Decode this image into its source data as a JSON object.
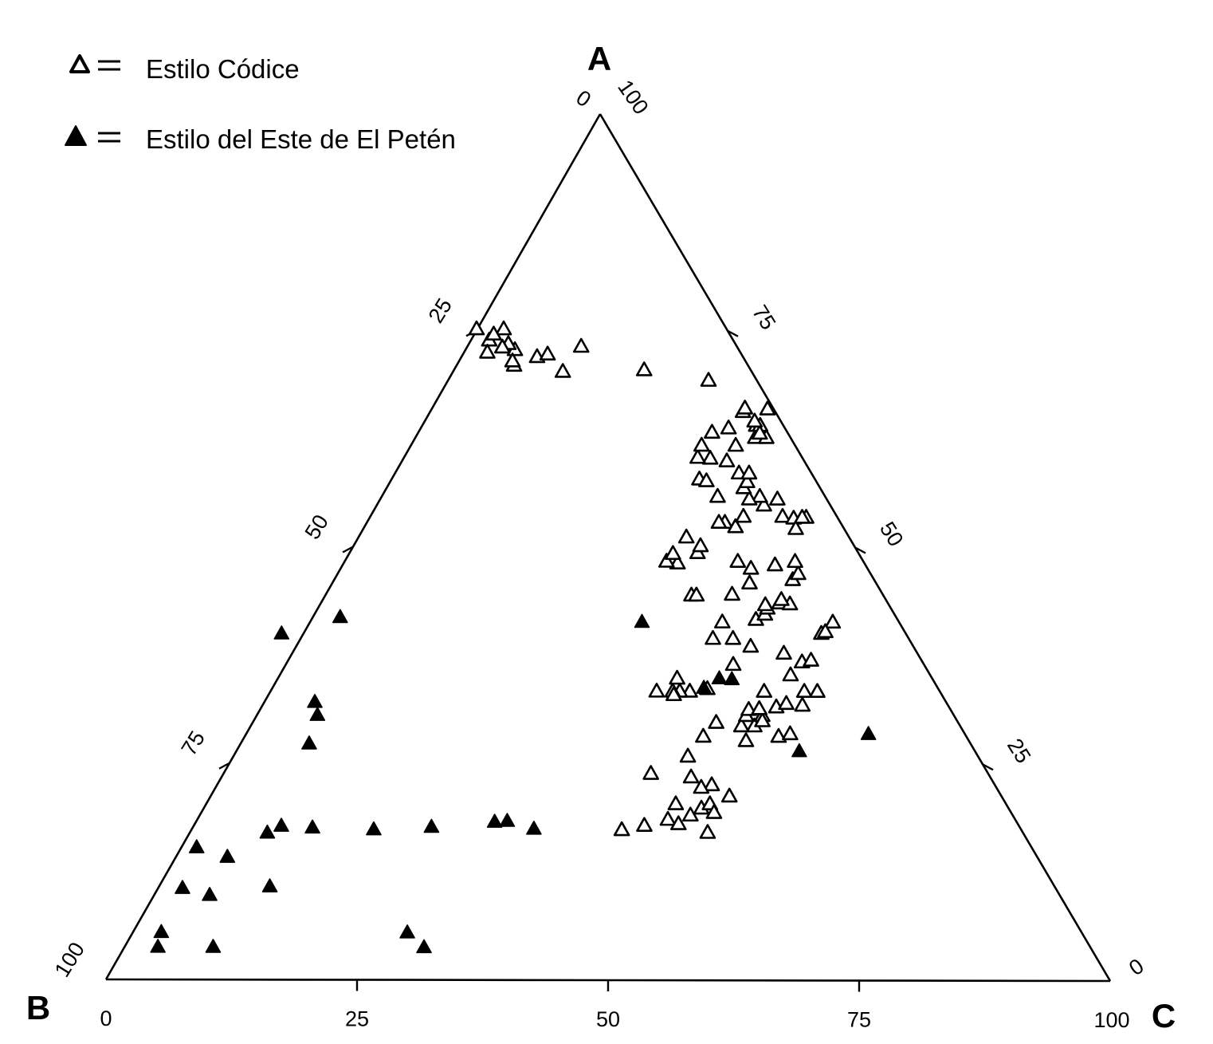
{
  "legend": {
    "items": [
      {
        "symbol": "open-triangle",
        "label": "Estilo Códice"
      },
      {
        "symbol": "filled-triangle",
        "label": "Estilo del Este de El Petén"
      }
    ]
  },
  "chart_data": {
    "type": "scatter",
    "subtype": "ternary",
    "axes": {
      "A": {
        "label": "A",
        "vertex": "top",
        "ticks": [
          "0",
          "25",
          "50",
          "75",
          "100"
        ]
      },
      "B": {
        "label": "B",
        "vertex": "bottom-left",
        "ticks": [
          "0",
          "25",
          "50",
          "75",
          "100"
        ]
      },
      "C": {
        "label": "C",
        "vertex": "bottom-right",
        "ticks": [
          "0",
          "25",
          "50",
          "75",
          "100"
        ]
      }
    },
    "tick_values": [
      0,
      25,
      50,
      75,
      100
    ],
    "colors": {
      "axis": "#000000",
      "marker": "#000000",
      "open_fill": "#ffffff"
    },
    "series": [
      {
        "name": "Estilo Códice",
        "marker": "open-triangle",
        "points": [
          [
            17.4,
            39.8,
            42.8
          ],
          [
            17.9,
            37.3,
            44.8
          ],
          [
            19.9,
            30.6,
            49.5
          ],
          [
            17.1,
            31.4,
            51.5
          ],
          [
            20.4,
            32.9,
            46.7
          ],
          [
            19.1,
            32.1,
            48.8
          ],
          [
            18.6,
            34.6,
            46.8
          ],
          [
            18.1,
            33.8,
            48.1
          ],
          [
            20.4,
            29.5,
            50.1
          ],
          [
            19.4,
            29.6,
            51.0
          ],
          [
            21.3,
            27.1,
            51.6
          ],
          [
            22.6,
            28.2,
            49.2
          ],
          [
            23.9,
            33.6,
            42.5
          ],
          [
            22.3,
            29.4,
            48.3
          ],
          [
            23.5,
            29.8,
            46.7
          ],
          [
            25.9,
            28.9,
            45.2
          ],
          [
            27.7,
            22.2,
            50.1
          ],
          [
            28.2,
            26.2,
            45.6
          ],
          [
            29.4,
            21.8,
            48.8
          ],
          [
            29.8,
            24.1,
            46.1
          ],
          [
            29.4,
            20.5,
            50.1
          ],
          [
            28.2,
            18.7,
            53.1
          ],
          [
            28.5,
            17.4,
            54.1
          ],
          [
            30.6,
            19.1,
            50.3
          ],
          [
            30.0,
            19.4,
            50.6
          ],
          [
            30.6,
            20.7,
            48.7
          ],
          [
            31.3,
            20.1,
            48.6
          ],
          [
            31.4,
            19.0,
            49.6
          ],
          [
            33.4,
            24.9,
            41.7
          ],
          [
            33.4,
            25.9,
            40.7
          ],
          [
            33.4,
            26.6,
            40.0
          ],
          [
            33.4,
            28.2,
            38.4
          ],
          [
            33.0,
            26.7,
            40.3
          ],
          [
            34.9,
            25.4,
            39.7
          ],
          [
            33.7,
            23.0,
            43.3
          ],
          [
            31.6,
            17.2,
            51.2
          ],
          [
            32.0,
            16.0,
            52.0
          ],
          [
            33.4,
            17.5,
            49.1
          ],
          [
            31.8,
            14.5,
            53.7
          ],
          [
            33.4,
            13.5,
            53.1
          ],
          [
            33.4,
            12.2,
            54.4
          ],
          [
            35.3,
            13.9,
            50.8
          ],
          [
            36.8,
            12.0,
            51.2
          ],
          [
            37.0,
            11.0,
            52.0
          ],
          [
            37.8,
            13.3,
            48.9
          ],
          [
            36.5,
            19.0,
            44.5
          ],
          [
            38.6,
            16.2,
            45.2
          ],
          [
            39.5,
            17.5,
            43.0
          ],
          [
            39.5,
            19.5,
            41.0
          ],
          [
            41.4,
            17.6,
            41.0
          ],
          [
            41.7,
            14.1,
            44.2
          ],
          [
            41.4,
            6.6,
            52.0
          ],
          [
            40.1,
            8.4,
            51.5
          ],
          [
            40.3,
            7.9,
            51.8
          ],
          [
            42.3,
            12.9,
            44.8
          ],
          [
            43.0,
            12.3,
            44.7
          ],
          [
            43.4,
            12.3,
            44.3
          ],
          [
            43.6,
            10.8,
            45.6
          ],
          [
            43.5,
            9.8,
            46.7
          ],
          [
            44.0,
            10.4,
            45.6
          ],
          [
            44.6,
            15.0,
            40.4
          ],
          [
            44.5,
            19.1,
            36.4
          ],
          [
            44.5,
            18.6,
            36.9
          ],
          [
            45.9,
            12.6,
            41.5
          ],
          [
            47.6,
            11.6,
            40.8
          ],
          [
            46.3,
            8.1,
            45.6
          ],
          [
            47.0,
            7.2,
            45.8
          ],
          [
            48.4,
            6.8,
            44.8
          ],
          [
            48.0,
            9.0,
            43.0
          ],
          [
            48.4,
            12.5,
            39.1
          ],
          [
            49.4,
            16.0,
            34.6
          ],
          [
            48.2,
            18.6,
            33.2
          ],
          [
            48.4,
            19.6,
            32.0
          ],
          [
            49.3,
            18.5,
            32.2
          ],
          [
            50.2,
            15.3,
            34.5
          ],
          [
            51.2,
            16.2,
            32.6
          ],
          [
            52.9,
            11.5,
            35.6
          ],
          [
            52.9,
            12.1,
            35.0
          ],
          [
            52.4,
            10.7,
            36.9
          ],
          [
            53.6,
            9.3,
            37.1
          ],
          [
            55.9,
            10.7,
            33.4
          ],
          [
            53.6,
            5.4,
            41.0
          ],
          [
            54.9,
            6.6,
            38.5
          ],
          [
            53.4,
            4.4,
            42.2
          ],
          [
            52.2,
            4.8,
            43.0
          ],
          [
            53.5,
            3.1,
            43.4
          ],
          [
            53.5,
            3.5,
            43.0
          ],
          [
            55.6,
            4.9,
            39.5
          ],
          [
            55.9,
            6.5,
            37.6
          ],
          [
            55.6,
            7.7,
            36.7
          ],
          [
            56.9,
            7.6,
            35.5
          ],
          [
            57.6,
            6.9,
            35.5
          ],
          [
            58.6,
            7.2,
            34.2
          ],
          [
            58.6,
            6.2,
            35.2
          ],
          [
            60.0,
            7.7,
            32.3
          ],
          [
            57.9,
            11.5,
            30.6
          ],
          [
            57.7,
            10.9,
            31.4
          ],
          [
            60.3,
            9.2,
            30.5
          ],
          [
            60.4,
            10.4,
            29.2
          ],
          [
            61.8,
            9.3,
            28.9
          ],
          [
            63.3,
            7.5,
            29.2
          ],
          [
            61.8,
            5.9,
            32.3
          ],
          [
            63.8,
            5.6,
            30.6
          ],
          [
            62.7,
            3.5,
            33.8
          ],
          [
            64.1,
            2.7,
            33.2
          ],
          [
            64.1,
            2.3,
            33.6
          ],
          [
            62.7,
            2.4,
            34.9
          ],
          [
            63.2,
            2.8,
            34.0
          ],
          [
            64.6,
            2.6,
            32.8
          ],
          [
            65.7,
            3.2,
            31.1
          ],
          [
            66.1,
            2.8,
            31.1
          ],
          [
            66.0,
            0.6,
            33.4
          ],
          [
            69.3,
            4.8,
            25.9
          ],
          [
            70.5,
            10.6,
            18.9
          ],
          [
            73.2,
            15.5,
            11.3
          ],
          [
            72.0,
            20.5,
            7.5
          ],
          [
            71.0,
            23.3,
            5.7
          ],
          [
            70.3,
            18.8,
            10.9
          ],
          [
            72.3,
            19.3,
            8.4
          ],
          [
            72.8,
            22.3,
            4.9
          ],
          [
            73.5,
            22.6,
            3.9
          ],
          [
            71.5,
            23.2,
            5.3
          ],
          [
            73.9,
            24.3,
            1.8
          ],
          [
            73.1,
            23.4,
            3.5
          ],
          [
            75.2,
            22.2,
            2.6
          ],
          [
            74.6,
            23.5,
            1.9
          ],
          [
            72.5,
            25.2,
            2.3
          ],
          [
            75.2,
            24.9,
            -0.1
          ]
        ]
      },
      {
        "name": "Estilo del Este de El Petén",
        "marker": "filled-triangle",
        "points": [
          [
            5.5,
            91.7,
            2.8
          ],
          [
            3.8,
            92.9,
            3.3
          ],
          [
            3.8,
            87.4,
            8.8
          ],
          [
            10.6,
            87.0,
            2.4
          ],
          [
            9.8,
            84.7,
            5.5
          ],
          [
            15.3,
            83.2,
            1.5
          ],
          [
            14.2,
            80.7,
            5.1
          ],
          [
            10.8,
            78.2,
            11.0
          ],
          [
            17.0,
            75.3,
            7.7
          ],
          [
            17.8,
            73.5,
            8.7
          ],
          [
            17.6,
            70.5,
            11.9
          ],
          [
            17.4,
            64.5,
            18.1
          ],
          [
            27.3,
            65.9,
            6.8
          ],
          [
            30.6,
            63.4,
            6.0
          ],
          [
            32.1,
            62.9,
            5.0
          ],
          [
            40.0,
            62.2,
            -2.2
          ],
          [
            41.9,
            55.4,
            2.7
          ],
          [
            5.5,
            67.2,
            27.3
          ],
          [
            3.8,
            66.4,
            29.8
          ],
          [
            17.7,
            58.6,
            23.7
          ],
          [
            18.3,
            52.0,
            29.7
          ],
          [
            18.4,
            50.7,
            30.9
          ],
          [
            17.5,
            48.5,
            34.0
          ],
          [
            41.4,
            25.6,
            33.0
          ],
          [
            33.8,
            23.3,
            42.9
          ],
          [
            34.8,
            20.0,
            45.2
          ],
          [
            34.9,
            21.2,
            43.9
          ],
          [
            26.5,
            17.5,
            56.0
          ],
          [
            28.5,
            9.6,
            61.9
          ]
        ]
      }
    ]
  }
}
